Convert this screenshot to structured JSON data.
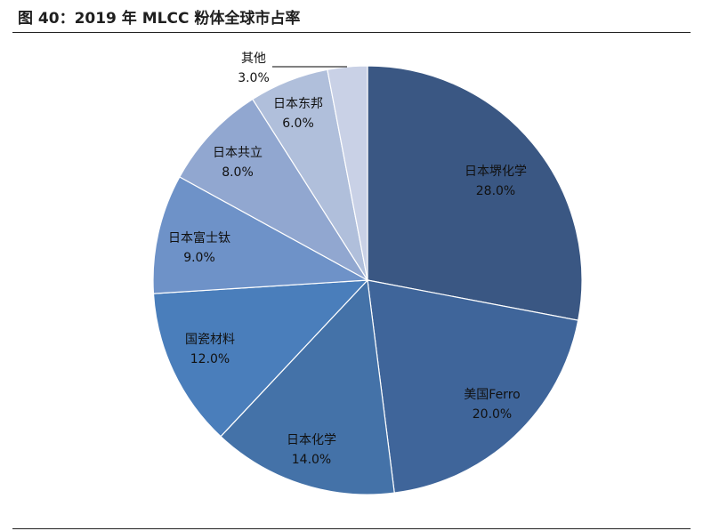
{
  "figure": {
    "title": "图 40：2019 年 MLCC 粉体全球市占率"
  },
  "chart_data": {
    "type": "pie",
    "title": "",
    "start_angle_deg": 0,
    "direction": "clockwise",
    "slices": [
      {
        "label": "日本堺化学",
        "value": 28.0,
        "value_label": "28.0%",
        "color": "#3a5783"
      },
      {
        "label": "美国Ferro",
        "value": 20.0,
        "value_label": "20.0%",
        "color": "#3f659a"
      },
      {
        "label": "日本化学",
        "value": 14.0,
        "value_label": "14.0%",
        "color": "#4472a8"
      },
      {
        "label": "国瓷材料",
        "value": 12.0,
        "value_label": "12.0%",
        "color": "#4a7ebb"
      },
      {
        "label": "日本富士钛",
        "value": 9.0,
        "value_label": "9.0%",
        "color": "#6e92c8"
      },
      {
        "label": "日本共立",
        "value": 8.0,
        "value_label": "8.0%",
        "color": "#91a7d0"
      },
      {
        "label": "日本东邦",
        "value": 6.0,
        "value_label": "6.0%",
        "color": "#b0bfdb"
      },
      {
        "label": "其他",
        "value": 3.0,
        "value_label": "3.0%",
        "color": "#c9d1e6"
      }
    ]
  }
}
